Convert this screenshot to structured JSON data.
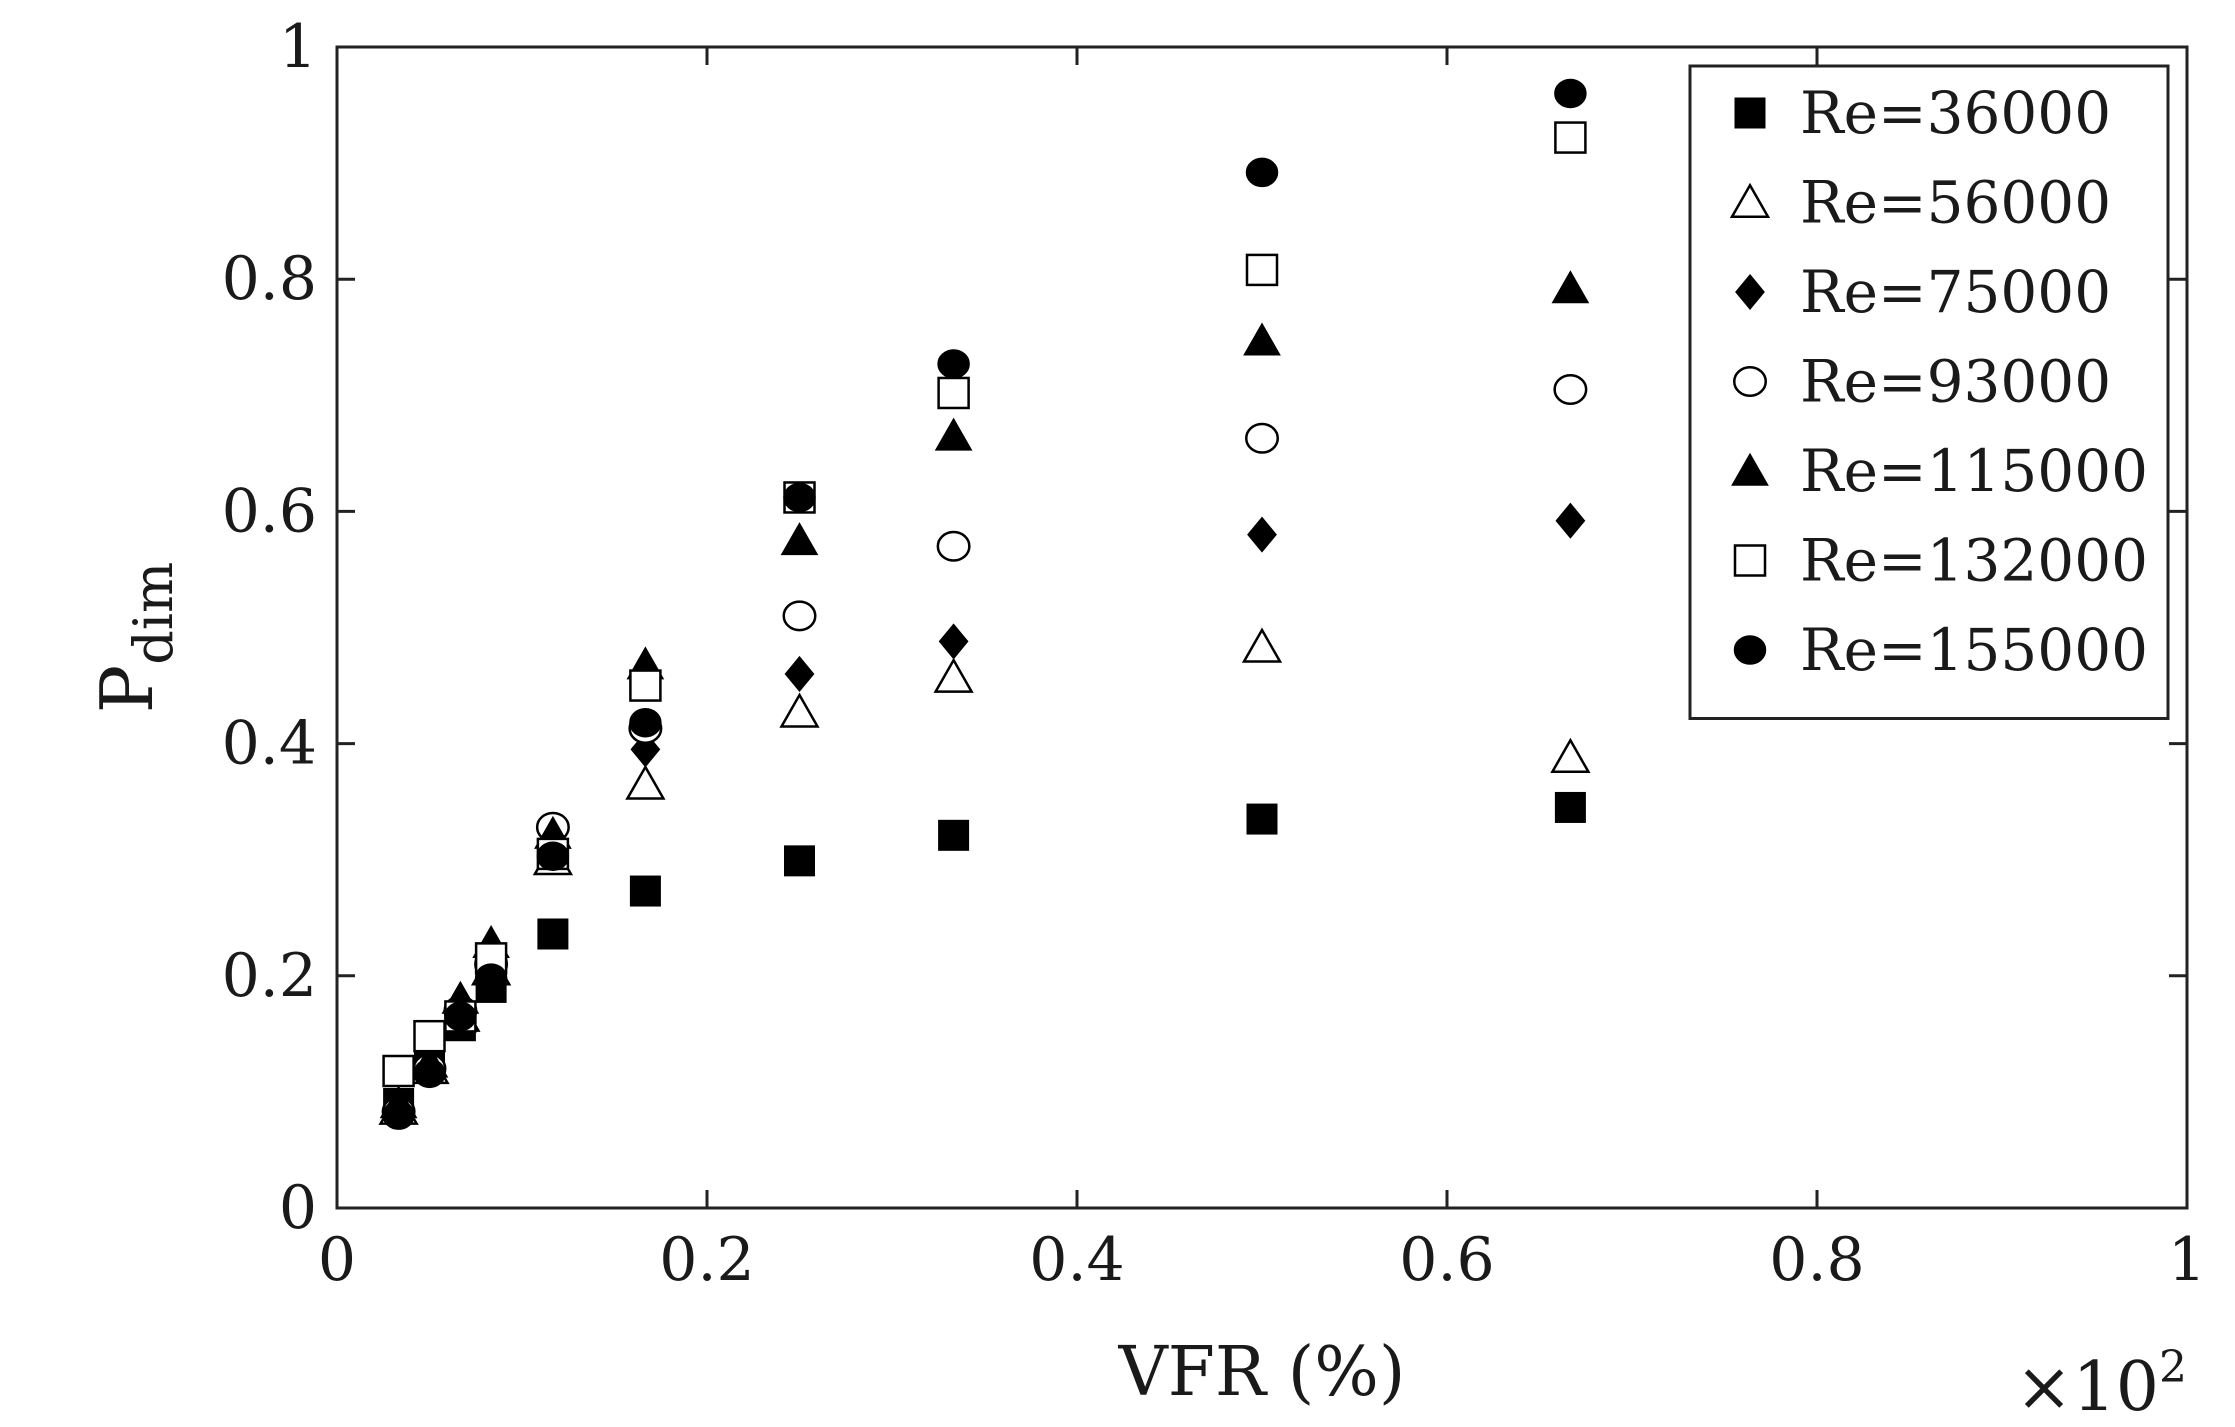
{
  "chart_data": {
    "type": "scatter",
    "title": "",
    "xlabel": "VFR (%)",
    "x_multiplier": "×10",
    "x_multiplier_exp": "2",
    "ylabel_main": "P",
    "ylabel_sub": "dim",
    "xlim": [
      0,
      1
    ],
    "ylim": [
      0,
      1
    ],
    "xticks": [
      0,
      0.2,
      0.4,
      0.6,
      0.8,
      1
    ],
    "xtick_labels": [
      "0",
      "0.2",
      "0.4",
      "0.6",
      "0.8",
      "1"
    ],
    "yticks": [
      0,
      0.2,
      0.4,
      0.6,
      0.8,
      1
    ],
    "ytick_labels": [
      "0",
      "0.2",
      "0.4",
      "0.6",
      "0.8",
      "1"
    ],
    "grid": false,
    "legend_position": "top-right",
    "x": [
      0.0333,
      0.05,
      0.0667,
      0.0833,
      0.1167,
      0.1667,
      0.25,
      0.3333,
      0.5,
      0.6667
    ],
    "series": [
      {
        "name": "Re=36000",
        "marker": "square-filled",
        "values": [
          0.09,
          0.13,
          0.157,
          0.19,
          0.236,
          0.273,
          0.299,
          0.321,
          0.335,
          0.345
        ]
      },
      {
        "name": "Re=56000",
        "marker": "triangle-open",
        "values": [
          0.085,
          0.12,
          0.165,
          0.205,
          0.3,
          0.365,
          0.427,
          0.457,
          0.483,
          0.388
        ]
      },
      {
        "name": "Re=75000",
        "marker": "diamond-filled",
        "values": [
          0.085,
          0.12,
          0.175,
          0.215,
          0.31,
          0.395,
          0.46,
          0.488,
          0.58,
          0.592
        ]
      },
      {
        "name": "Re=93000",
        "marker": "circle-open",
        "values": [
          0.083,
          0.12,
          0.17,
          0.21,
          0.328,
          0.413,
          0.51,
          0.57,
          0.663,
          0.705
        ]
      },
      {
        "name": "Re=115000",
        "marker": "triangle-filled",
        "values": [
          0.09,
          0.125,
          0.18,
          0.228,
          0.322,
          0.468,
          0.575,
          0.665,
          0.747,
          0.792
        ]
      },
      {
        "name": "Re=132000",
        "marker": "square-open",
        "values": [
          0.118,
          0.148,
          0.165,
          0.215,
          0.305,
          0.45,
          0.612,
          0.702,
          0.808,
          0.922
        ]
      },
      {
        "name": "Re=155000",
        "marker": "circle-filled",
        "values": [
          0.08,
          0.116,
          0.165,
          0.198,
          0.303,
          0.418,
          0.612,
          0.727,
          0.892,
          0.96
        ]
      }
    ]
  }
}
